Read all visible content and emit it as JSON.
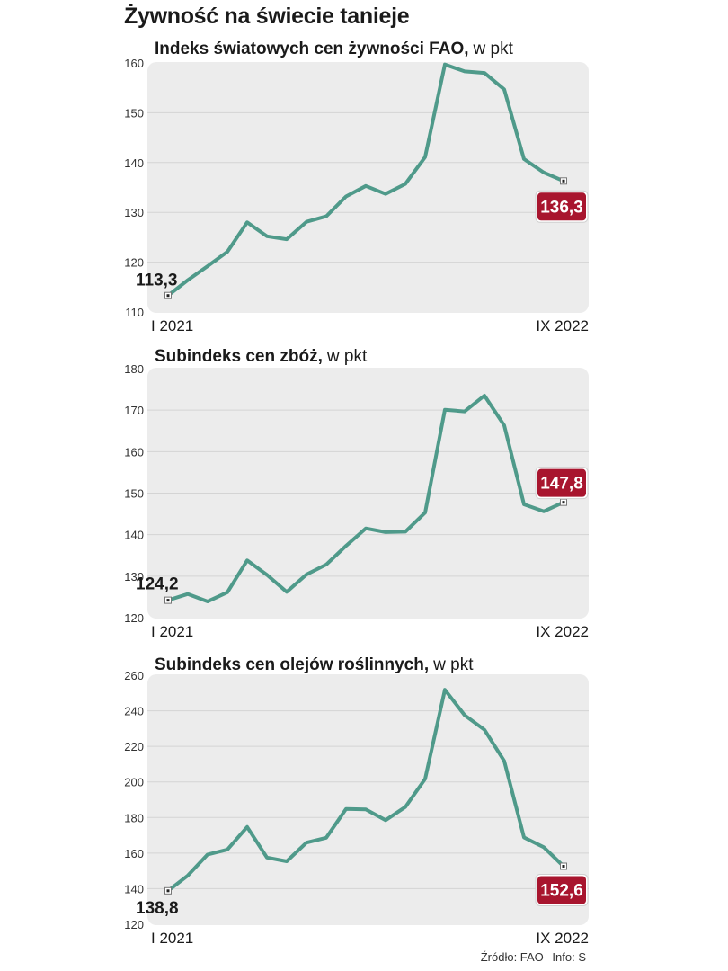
{
  "title": "Żywność na świecie tanieje",
  "source": {
    "zrodlo": "Źródło: FAO",
    "info": "Info: S"
  },
  "colors": {
    "line": "#4f9a8a",
    "badge": "#a8152e",
    "panel_bg": "#ececec"
  },
  "chart_data": [
    {
      "type": "line",
      "title": "Indeks światowych cen żywności FAO,",
      "unit": "w pkt",
      "x_labels": [
        "I 2021",
        "IX 2022"
      ],
      "y_ticks": [
        110,
        120,
        130,
        140,
        150,
        160
      ],
      "ylim": [
        110,
        160
      ],
      "grid": true,
      "start_label": "113,3",
      "end_label": "136,3",
      "values": [
        113.3,
        116.4,
        119.2,
        122.1,
        128.0,
        125.2,
        124.6,
        128.1,
        129.2,
        133.2,
        135.3,
        133.7,
        135.7,
        141.1,
        159.7,
        158.3,
        158.0,
        154.7,
        140.7,
        138.0,
        136.3
      ]
    },
    {
      "type": "line",
      "title": "Subindeks cen zbóż,",
      "unit": "w pkt",
      "x_labels": [
        "I 2021",
        "IX 2022"
      ],
      "y_ticks": [
        120,
        130,
        140,
        150,
        160,
        170,
        180
      ],
      "ylim": [
        120,
        180
      ],
      "grid": true,
      "start_label": "124,2",
      "end_label": "147,8",
      "values": [
        124.2,
        125.7,
        123.9,
        126.1,
        133.8,
        130.3,
        126.2,
        130.4,
        132.8,
        137.3,
        141.5,
        140.6,
        140.7,
        145.3,
        170.1,
        169.7,
        173.5,
        166.3,
        147.3,
        145.6,
        147.8
      ]
    },
    {
      "type": "line",
      "title": "Subindeks cen olejów roślinnych,",
      "unit": "w pkt",
      "x_labels": [
        "I 2021",
        "IX 2022"
      ],
      "y_ticks": [
        120,
        140,
        160,
        180,
        200,
        220,
        240,
        260
      ],
      "ylim": [
        120,
        260
      ],
      "grid": true,
      "start_label": "138,8",
      "end_label": "152,6",
      "values": [
        138.8,
        147.4,
        159.2,
        162.0,
        174.7,
        157.5,
        155.4,
        165.9,
        168.6,
        184.8,
        184.6,
        178.5,
        185.9,
        201.7,
        251.8,
        237.5,
        229.3,
        211.8,
        168.8,
        163.3,
        152.6
      ]
    }
  ]
}
